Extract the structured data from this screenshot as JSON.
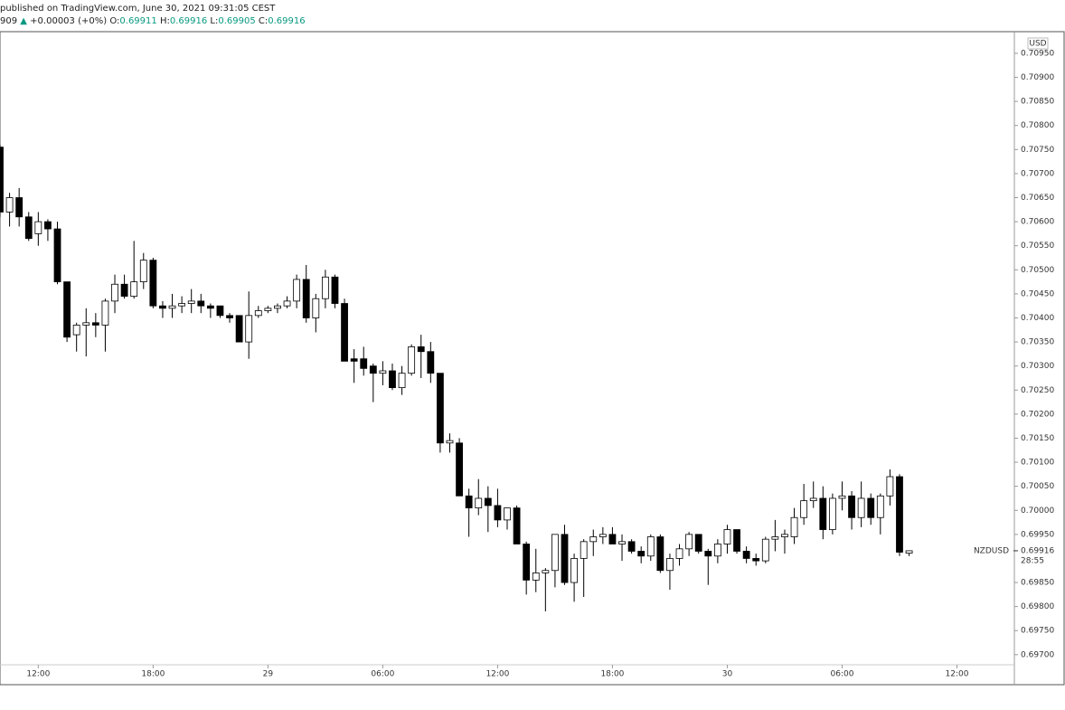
{
  "header": {
    "published": "published on TradingView.com, June 30, 2021 09:31:05 CEST",
    "prefix": "909",
    "arrow": "▲",
    "change": "+0.00003 (+0%)",
    "o_label": "O:",
    "o": "0.69911",
    "h_label": "H:",
    "h": "0.69916",
    "l_label": "L:",
    "l": "0.69905",
    "c_label": "C:",
    "c": "0.69916"
  },
  "chart_data": {
    "type": "candlestick",
    "currency": "USD",
    "symbol": "NZDUSD",
    "countdown": "28:55",
    "last_price": {
      "value": 0.69916,
      "label": "0.69916"
    },
    "up_color": "#ffffff",
    "down_color": "#000000",
    "outline_color": "#000000",
    "x": [
      10,
      10.5,
      11,
      11.5,
      12,
      12.5,
      13,
      13.5,
      14,
      14.5,
      15,
      15.5,
      16,
      16.5,
      17,
      17.5,
      18,
      18.5,
      19,
      19.5,
      20,
      20.5,
      21,
      21.5,
      22,
      22.5,
      23,
      23.5,
      24,
      24.5,
      25,
      25.5,
      26,
      26.5,
      27,
      27.5,
      28,
      28.5,
      29,
      29.5,
      30,
      30.5,
      31,
      31.5,
      32,
      32.5,
      33,
      33.5,
      34,
      34.5,
      35,
      35.5,
      36,
      36.5,
      37,
      37.5,
      38,
      38.5,
      39,
      39.5,
      40,
      40.5,
      41,
      41.5,
      42,
      42.5,
      43,
      43.5,
      44,
      44.5,
      45,
      45.5,
      46,
      46.5,
      47,
      47.5,
      48,
      48.5,
      49,
      49.5,
      50,
      50.5,
      51,
      51.5,
      52,
      52.5,
      53,
      53.5,
      54,
      54.5,
      55,
      55.5,
      56,
      56.5,
      57,
      57.5
    ],
    "open": [
      0.70755,
      0.7062,
      0.7065,
      0.7061,
      0.70575,
      0.706,
      0.70585,
      0.70475,
      0.70365,
      0.70385,
      0.7039,
      0.70385,
      0.70435,
      0.7047,
      0.70445,
      0.70475,
      0.7052,
      0.70425,
      0.7042,
      0.70425,
      0.7043,
      0.70435,
      0.70425,
      0.70425,
      0.70405,
      0.70405,
      0.7035,
      0.70405,
      0.70415,
      0.7042,
      0.70425,
      0.70435,
      0.7048,
      0.704,
      0.7044,
      0.70485,
      0.7043,
      0.70315,
      0.70315,
      0.703,
      0.70285,
      0.7029,
      0.70255,
      0.70285,
      0.7034,
      0.7033,
      0.70285,
      0.7014,
      0.7014,
      0.7003,
      0.70005,
      0.70025,
      0.7001,
      0.6998,
      0.70005,
      0.6993,
      0.69855,
      0.6987,
      0.69875,
      0.6995,
      0.6985,
      0.699,
      0.69935,
      0.69945,
      0.6995,
      0.6993,
      0.69935,
      0.69915,
      0.69905,
      0.69945,
      0.69875,
      0.699,
      0.6992,
      0.6995,
      0.69915,
      0.69905,
      0.6993,
      0.6996,
      0.69915,
      0.699,
      0.69895,
      0.6994,
      0.69945,
      0.69945,
      0.69985,
      0.7002,
      0.70025,
      0.6996,
      0.70025,
      0.7003,
      0.69985,
      0.70025,
      0.69985,
      0.7003,
      0.7007,
      0.69911
    ],
    "high": [
      0.7076,
      0.7066,
      0.7067,
      0.7062,
      0.7062,
      0.70605,
      0.706,
      0.70475,
      0.7039,
      0.7042,
      0.7041,
      0.7044,
      0.7049,
      0.7049,
      0.7056,
      0.70535,
      0.70525,
      0.70435,
      0.7045,
      0.70445,
      0.7046,
      0.7045,
      0.7043,
      0.70425,
      0.7041,
      0.70405,
      0.70455,
      0.70425,
      0.70425,
      0.7043,
      0.70445,
      0.7049,
      0.7051,
      0.7045,
      0.705,
      0.7049,
      0.7044,
      0.70335,
      0.7034,
      0.70305,
      0.7031,
      0.70305,
      0.703,
      0.70345,
      0.70365,
      0.7035,
      0.70285,
      0.7016,
      0.7015,
      0.70045,
      0.70065,
      0.7005,
      0.70045,
      0.70005,
      0.7001,
      0.69935,
      0.6992,
      0.6988,
      0.6995,
      0.6997,
      0.6991,
      0.6994,
      0.6996,
      0.69965,
      0.69965,
      0.6995,
      0.6994,
      0.69925,
      0.6995,
      0.6995,
      0.6991,
      0.6993,
      0.69955,
      0.6995,
      0.6992,
      0.6994,
      0.6997,
      0.6996,
      0.69925,
      0.6991,
      0.69945,
      0.6998,
      0.6996,
      0.70005,
      0.70055,
      0.7006,
      0.7005,
      0.70035,
      0.7006,
      0.7004,
      0.7006,
      0.70035,
      0.70035,
      0.70085,
      0.70075,
      0.69916
    ],
    "low": [
      0.7061,
      0.7059,
      0.7059,
      0.7056,
      0.7055,
      0.7056,
      0.7047,
      0.7035,
      0.7033,
      0.7032,
      0.7036,
      0.7033,
      0.7041,
      0.7044,
      0.7044,
      0.7046,
      0.7042,
      0.704,
      0.704,
      0.7041,
      0.7041,
      0.7041,
      0.704,
      0.704,
      0.7039,
      0.7035,
      0.70315,
      0.704,
      0.7041,
      0.7041,
      0.7042,
      0.7042,
      0.7039,
      0.7037,
      0.7042,
      0.7042,
      0.7031,
      0.70265,
      0.7028,
      0.70225,
      0.7026,
      0.7025,
      0.7024,
      0.7028,
      0.70275,
      0.70265,
      0.7012,
      0.7012,
      0.7003,
      0.69945,
      0.6999,
      0.69955,
      0.69965,
      0.6996,
      0.6993,
      0.69825,
      0.6983,
      0.6979,
      0.6984,
      0.69845,
      0.6981,
      0.6982,
      0.69905,
      0.6993,
      0.6993,
      0.69895,
      0.6991,
      0.6989,
      0.69895,
      0.6987,
      0.69835,
      0.69885,
      0.69905,
      0.6991,
      0.69845,
      0.6989,
      0.6991,
      0.6991,
      0.6989,
      0.69885,
      0.6989,
      0.69915,
      0.6991,
      0.6993,
      0.6997,
      0.70005,
      0.6994,
      0.6995,
      0.7,
      0.6996,
      0.69965,
      0.6997,
      0.6995,
      0.7001,
      0.69905,
      0.69905
    ],
    "close": [
      0.7062,
      0.7065,
      0.7061,
      0.70565,
      0.706,
      0.70585,
      0.70475,
      0.7036,
      0.70385,
      0.7039,
      0.70385,
      0.70435,
      0.7047,
      0.70445,
      0.70475,
      0.7052,
      0.70425,
      0.7042,
      0.70425,
      0.7043,
      0.70435,
      0.70425,
      0.7042,
      0.70405,
      0.704,
      0.7035,
      0.70405,
      0.70415,
      0.7042,
      0.70425,
      0.70435,
      0.7048,
      0.704,
      0.7044,
      0.70485,
      0.7043,
      0.7031,
      0.7031,
      0.70295,
      0.70285,
      0.7029,
      0.70255,
      0.70285,
      0.7034,
      0.7033,
      0.70285,
      0.7014,
      0.70145,
      0.7003,
      0.70005,
      0.70025,
      0.7001,
      0.6998,
      0.70005,
      0.6993,
      0.69855,
      0.6987,
      0.69875,
      0.6995,
      0.6985,
      0.699,
      0.69935,
      0.69945,
      0.6995,
      0.6993,
      0.69935,
      0.69915,
      0.69905,
      0.69945,
      0.69875,
      0.699,
      0.6992,
      0.6995,
      0.69915,
      0.69905,
      0.6993,
      0.6996,
      0.69915,
      0.699,
      0.69895,
      0.6994,
      0.69945,
      0.6995,
      0.69985,
      0.7002,
      0.70025,
      0.6996,
      0.70025,
      0.7003,
      0.69985,
      0.70025,
      0.69985,
      0.7003,
      0.7007,
      0.69913,
      0.69916
    ],
    "xlim": [
      10,
      63
    ],
    "xticks": [
      {
        "value": 12,
        "label": "12:00"
      },
      {
        "value": 18,
        "label": "18:00"
      },
      {
        "value": 24,
        "label": "29"
      },
      {
        "value": 30,
        "label": "06:00"
      },
      {
        "value": 36,
        "label": "12:00"
      },
      {
        "value": 42,
        "label": "18:00"
      },
      {
        "value": 48,
        "label": "30"
      },
      {
        "value": 54,
        "label": "06:00"
      },
      {
        "value": 60,
        "label": "12:00"
      }
    ],
    "ylim": [
      0.69679,
      0.70995
    ],
    "yticks": [
      {
        "value": 0.697,
        "label": "0.69700"
      },
      {
        "value": 0.6975,
        "label": "0.69750"
      },
      {
        "value": 0.698,
        "label": "0.69800"
      },
      {
        "value": 0.6985,
        "label": "0.69850"
      },
      {
        "value": 0.6995,
        "label": "0.69950"
      },
      {
        "value": 0.7,
        "label": "0.70000"
      },
      {
        "value": 0.7005,
        "label": "0.70050"
      },
      {
        "value": 0.701,
        "label": "0.70100"
      },
      {
        "value": 0.7015,
        "label": "0.70150"
      },
      {
        "value": 0.702,
        "label": "0.70200"
      },
      {
        "value": 0.7025,
        "label": "0.70250"
      },
      {
        "value": 0.703,
        "label": "0.70300"
      },
      {
        "value": 0.7035,
        "label": "0.70350"
      },
      {
        "value": 0.704,
        "label": "0.70400"
      },
      {
        "value": 0.7045,
        "label": "0.70450"
      },
      {
        "value": 0.705,
        "label": "0.70500"
      },
      {
        "value": 0.7055,
        "label": "0.70550"
      },
      {
        "value": 0.706,
        "label": "0.70600"
      },
      {
        "value": 0.7065,
        "label": "0.70650"
      },
      {
        "value": 0.707,
        "label": "0.70700"
      },
      {
        "value": 0.7075,
        "label": "0.70750"
      },
      {
        "value": 0.708,
        "label": "0.70800"
      },
      {
        "value": 0.7085,
        "label": "0.70850"
      },
      {
        "value": 0.709,
        "label": "0.70900"
      },
      {
        "value": 0.7095,
        "label": "0.70950"
      }
    ]
  }
}
